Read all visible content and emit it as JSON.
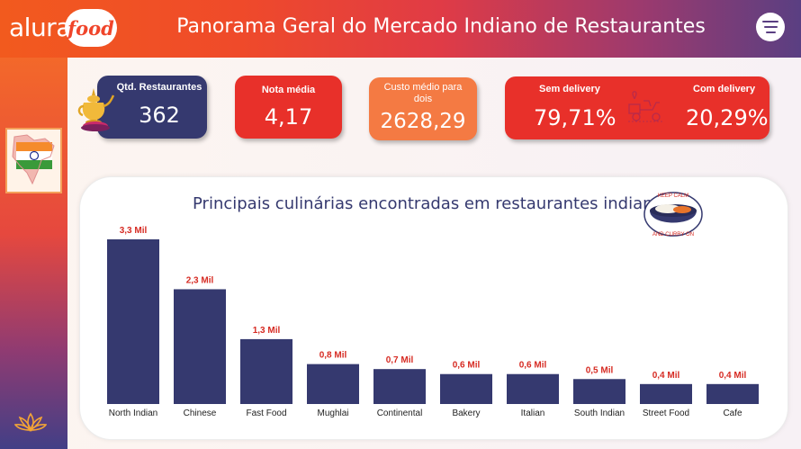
{
  "header": {
    "logo_alura": "alura",
    "logo_food": "food",
    "title": "Panorama Geral do Mercado Indiano de Restaurantes",
    "menu_icon": "hamburger-menu-icon"
  },
  "sidebar": {
    "items": [
      {
        "icon": "india-map-flag-icon"
      },
      {
        "icon": "lotus-icon"
      }
    ]
  },
  "kpis": {
    "restaurantes": {
      "label": "Qtd. Restaurantes",
      "value": "362"
    },
    "nota": {
      "label": "Nota média",
      "value": "4,17"
    },
    "custo": {
      "label": "Custo médio para dois",
      "value": "2628,29"
    },
    "sem_delivery": {
      "label": "Sem delivery",
      "value": "79,71%"
    },
    "com_delivery": {
      "label": "Com delivery",
      "value": "20,29%"
    }
  },
  "chart": {
    "title": "Principais culinárias encontradas em restaurantes indianos",
    "badge_top": "KEEP CALM",
    "badge_bottom": "AND CURRY ON"
  },
  "colors": {
    "navy": "#35396f",
    "red": "#e8302a",
    "orange": "#f47a43",
    "label_red": "#d62b23"
  },
  "chart_data": {
    "type": "bar",
    "title": "Principais culinárias encontradas em restaurantes indianos",
    "categories": [
      "North Indian",
      "Chinese",
      "Fast Food",
      "Mughlai",
      "Continental",
      "Bakery",
      "Italian",
      "South Indian",
      "Street Food",
      "Cafe"
    ],
    "values": [
      3.3,
      2.3,
      1.3,
      0.8,
      0.7,
      0.6,
      0.6,
      0.5,
      0.4,
      0.4
    ],
    "data_labels": [
      "3,3 Mil",
      "2,3 Mil",
      "1,3 Mil",
      "0,8 Mil",
      "0,7 Mil",
      "0,6 Mil",
      "0,6 Mil",
      "0,5 Mil",
      "0,4 Mil",
      "0,4 Mil"
    ],
    "unit": "Mil",
    "xlabel": "",
    "ylabel": "",
    "ylim": [
      0,
      3.3
    ],
    "grid": false,
    "color": "#35396f"
  }
}
